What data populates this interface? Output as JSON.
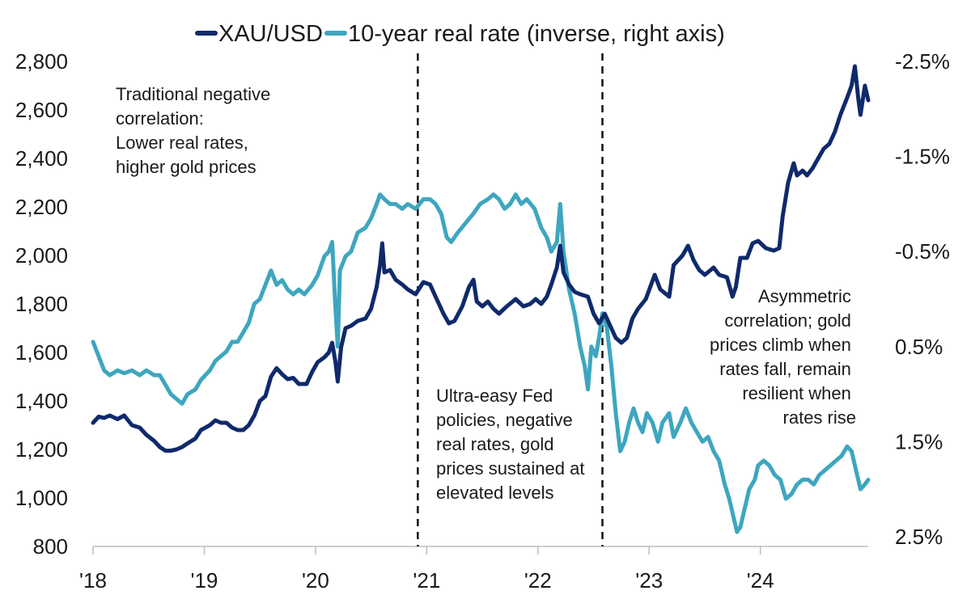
{
  "chart_data": {
    "type": "line",
    "title": "",
    "legend": [
      {
        "name": "XAU/USD",
        "color": "#0f2a6b"
      },
      {
        "name": "10-year real rate (inverse, right axis)",
        "color": "#3ea6bf"
      }
    ],
    "x_ticks": [
      "'18",
      "'19",
      "'20",
      "'21",
      "'22",
      "'23",
      "'24"
    ],
    "x_range": [
      2018.0,
      2024.97
    ],
    "y_left": {
      "ticks": [
        "2,800",
        "2,600",
        "2,400",
        "2,200",
        "2,000",
        "1,800",
        "1,600",
        "1,400",
        "1,200",
        "1,000",
        "800"
      ],
      "range": [
        800,
        2800
      ]
    },
    "y_right": {
      "ticks": [
        "-2.5%",
        "-1.5%",
        "-0.5%",
        "0.5%",
        "1.5%",
        "2.5%"
      ],
      "range": [
        -2.5,
        2.5
      ],
      "inverted": true
    },
    "vertical_lines_x": [
      2020.92,
      2022.58
    ],
    "series": [
      {
        "name": "XAU/USD",
        "axis": "left",
        "color": "#0f2a6b",
        "points": [
          [
            2018.0,
            1310
          ],
          [
            2018.05,
            1335
          ],
          [
            2018.1,
            1330
          ],
          [
            2018.15,
            1340
          ],
          [
            2018.22,
            1325
          ],
          [
            2018.28,
            1340
          ],
          [
            2018.35,
            1300
          ],
          [
            2018.42,
            1290
          ],
          [
            2018.48,
            1260
          ],
          [
            2018.55,
            1235
          ],
          [
            2018.6,
            1210
          ],
          [
            2018.65,
            1195
          ],
          [
            2018.7,
            1195
          ],
          [
            2018.75,
            1200
          ],
          [
            2018.8,
            1210
          ],
          [
            2018.85,
            1225
          ],
          [
            2018.92,
            1245
          ],
          [
            2018.97,
            1280
          ],
          [
            2019.05,
            1300
          ],
          [
            2019.1,
            1320
          ],
          [
            2019.15,
            1310
          ],
          [
            2019.2,
            1310
          ],
          [
            2019.25,
            1290
          ],
          [
            2019.3,
            1280
          ],
          [
            2019.35,
            1280
          ],
          [
            2019.4,
            1300
          ],
          [
            2019.45,
            1340
          ],
          [
            2019.5,
            1400
          ],
          [
            2019.55,
            1420
          ],
          [
            2019.6,
            1500
          ],
          [
            2019.65,
            1535
          ],
          [
            2019.7,
            1510
          ],
          [
            2019.75,
            1490
          ],
          [
            2019.8,
            1495
          ],
          [
            2019.85,
            1470
          ],
          [
            2019.92,
            1470
          ],
          [
            2019.97,
            1520
          ],
          [
            2020.02,
            1560
          ],
          [
            2020.08,
            1580
          ],
          [
            2020.12,
            1600
          ],
          [
            2020.15,
            1640
          ],
          [
            2020.18,
            1560
          ],
          [
            2020.2,
            1480
          ],
          [
            2020.23,
            1620
          ],
          [
            2020.27,
            1700
          ],
          [
            2020.32,
            1710
          ],
          [
            2020.38,
            1730
          ],
          [
            2020.45,
            1740
          ],
          [
            2020.5,
            1780
          ],
          [
            2020.55,
            1870
          ],
          [
            2020.58,
            1960
          ],
          [
            2020.6,
            2050
          ],
          [
            2020.62,
            1930
          ],
          [
            2020.67,
            1940
          ],
          [
            2020.72,
            1900
          ],
          [
            2020.78,
            1880
          ],
          [
            2020.83,
            1860
          ],
          [
            2020.9,
            1840
          ],
          [
            2020.97,
            1890
          ],
          [
            2021.03,
            1880
          ],
          [
            2021.08,
            1830
          ],
          [
            2021.15,
            1760
          ],
          [
            2021.2,
            1720
          ],
          [
            2021.25,
            1730
          ],
          [
            2021.32,
            1790
          ],
          [
            2021.38,
            1870
          ],
          [
            2021.42,
            1900
          ],
          [
            2021.45,
            1810
          ],
          [
            2021.5,
            1790
          ],
          [
            2021.55,
            1810
          ],
          [
            2021.6,
            1780
          ],
          [
            2021.65,
            1760
          ],
          [
            2021.72,
            1790
          ],
          [
            2021.8,
            1820
          ],
          [
            2021.87,
            1790
          ],
          [
            2021.93,
            1800
          ],
          [
            2021.98,
            1820
          ],
          [
            2022.03,
            1800
          ],
          [
            2022.08,
            1830
          ],
          [
            2022.12,
            1880
          ],
          [
            2022.17,
            1950
          ],
          [
            2022.2,
            2040
          ],
          [
            2022.23,
            1930
          ],
          [
            2022.28,
            1880
          ],
          [
            2022.33,
            1850
          ],
          [
            2022.38,
            1840
          ],
          [
            2022.45,
            1830
          ],
          [
            2022.5,
            1760
          ],
          [
            2022.55,
            1720
          ],
          [
            2022.6,
            1760
          ],
          [
            2022.65,
            1710
          ],
          [
            2022.7,
            1660
          ],
          [
            2022.75,
            1640
          ],
          [
            2022.8,
            1660
          ],
          [
            2022.85,
            1740
          ],
          [
            2022.9,
            1780
          ],
          [
            2022.97,
            1820
          ],
          [
            2023.05,
            1920
          ],
          [
            2023.1,
            1860
          ],
          [
            2023.18,
            1830
          ],
          [
            2023.22,
            1960
          ],
          [
            2023.3,
            2000
          ],
          [
            2023.35,
            2040
          ],
          [
            2023.4,
            1980
          ],
          [
            2023.45,
            1940
          ],
          [
            2023.5,
            1920
          ],
          [
            2023.58,
            1950
          ],
          [
            2023.63,
            1920
          ],
          [
            2023.7,
            1910
          ],
          [
            2023.75,
            1830
          ],
          [
            2023.78,
            1870
          ],
          [
            2023.82,
            1990
          ],
          [
            2023.88,
            1990
          ],
          [
            2023.93,
            2050
          ],
          [
            2023.98,
            2060
          ],
          [
            2024.05,
            2030
          ],
          [
            2024.12,
            2020
          ],
          [
            2024.17,
            2030
          ],
          [
            2024.2,
            2160
          ],
          [
            2024.25,
            2300
          ],
          [
            2024.3,
            2380
          ],
          [
            2024.33,
            2330
          ],
          [
            2024.38,
            2350
          ],
          [
            2024.42,
            2330
          ],
          [
            2024.47,
            2360
          ],
          [
            2024.52,
            2400
          ],
          [
            2024.57,
            2440
          ],
          [
            2024.62,
            2460
          ],
          [
            2024.67,
            2510
          ],
          [
            2024.72,
            2580
          ],
          [
            2024.78,
            2650
          ],
          [
            2024.82,
            2700
          ],
          [
            2024.85,
            2780
          ],
          [
            2024.88,
            2650
          ],
          [
            2024.9,
            2580
          ],
          [
            2024.94,
            2700
          ],
          [
            2024.97,
            2640
          ]
        ]
      },
      {
        "name": "10-year real rate (inverse, right axis)",
        "axis": "right",
        "color": "#3ea6bf",
        "points": [
          [
            2018.0,
            0.45
          ],
          [
            2018.05,
            0.6
          ],
          [
            2018.1,
            0.75
          ],
          [
            2018.15,
            0.8
          ],
          [
            2018.22,
            0.75
          ],
          [
            2018.28,
            0.78
          ],
          [
            2018.35,
            0.75
          ],
          [
            2018.42,
            0.8
          ],
          [
            2018.48,
            0.75
          ],
          [
            2018.55,
            0.8
          ],
          [
            2018.6,
            0.8
          ],
          [
            2018.65,
            0.9
          ],
          [
            2018.7,
            1.0
          ],
          [
            2018.75,
            1.05
          ],
          [
            2018.8,
            1.1
          ],
          [
            2018.85,
            1.0
          ],
          [
            2018.92,
            0.95
          ],
          [
            2018.97,
            0.85
          ],
          [
            2019.05,
            0.75
          ],
          [
            2019.1,
            0.65
          ],
          [
            2019.15,
            0.6
          ],
          [
            2019.2,
            0.55
          ],
          [
            2019.25,
            0.45
          ],
          [
            2019.3,
            0.45
          ],
          [
            2019.35,
            0.35
          ],
          [
            2019.4,
            0.25
          ],
          [
            2019.45,
            0.05
          ],
          [
            2019.5,
            0.0
          ],
          [
            2019.55,
            -0.15
          ],
          [
            2019.6,
            -0.3
          ],
          [
            2019.65,
            -0.15
          ],
          [
            2019.7,
            -0.2
          ],
          [
            2019.75,
            -0.1
          ],
          [
            2019.8,
            -0.05
          ],
          [
            2019.85,
            -0.1
          ],
          [
            2019.9,
            -0.05
          ],
          [
            2019.97,
            -0.15
          ],
          [
            2020.02,
            -0.25
          ],
          [
            2020.08,
            -0.45
          ],
          [
            2020.12,
            -0.5
          ],
          [
            2020.15,
            -0.6
          ],
          [
            2020.18,
            0.1
          ],
          [
            2020.2,
            0.5
          ],
          [
            2020.22,
            -0.3
          ],
          [
            2020.27,
            -0.45
          ],
          [
            2020.32,
            -0.5
          ],
          [
            2020.38,
            -0.7
          ],
          [
            2020.45,
            -0.75
          ],
          [
            2020.5,
            -0.85
          ],
          [
            2020.55,
            -1.0
          ],
          [
            2020.58,
            -1.1
          ],
          [
            2020.62,
            -1.05
          ],
          [
            2020.67,
            -1.0
          ],
          [
            2020.72,
            -1.0
          ],
          [
            2020.78,
            -0.95
          ],
          [
            2020.83,
            -1.0
          ],
          [
            2020.9,
            -0.95
          ],
          [
            2020.97,
            -1.05
          ],
          [
            2021.03,
            -1.05
          ],
          [
            2021.08,
            -1.0
          ],
          [
            2021.13,
            -0.9
          ],
          [
            2021.18,
            -0.65
          ],
          [
            2021.22,
            -0.6
          ],
          [
            2021.28,
            -0.7
          ],
          [
            2021.35,
            -0.8
          ],
          [
            2021.42,
            -0.9
          ],
          [
            2021.48,
            -1.0
          ],
          [
            2021.55,
            -1.05
          ],
          [
            2021.6,
            -1.1
          ],
          [
            2021.65,
            -1.05
          ],
          [
            2021.7,
            -0.95
          ],
          [
            2021.75,
            -1.0
          ],
          [
            2021.8,
            -1.1
          ],
          [
            2021.85,
            -1.0
          ],
          [
            2021.9,
            -1.05
          ],
          [
            2021.97,
            -0.95
          ],
          [
            2022.03,
            -0.75
          ],
          [
            2022.08,
            -0.65
          ],
          [
            2022.12,
            -0.5
          ],
          [
            2022.17,
            -0.6
          ],
          [
            2022.2,
            -1.0
          ],
          [
            2022.23,
            -0.5
          ],
          [
            2022.28,
            -0.1
          ],
          [
            2022.33,
            0.15
          ],
          [
            2022.38,
            0.5
          ],
          [
            2022.42,
            0.7
          ],
          [
            2022.45,
            0.95
          ],
          [
            2022.48,
            0.5
          ],
          [
            2022.52,
            0.6
          ],
          [
            2022.55,
            0.4
          ],
          [
            2022.58,
            0.15
          ],
          [
            2022.62,
            0.3
          ],
          [
            2022.66,
            0.7
          ],
          [
            2022.7,
            1.2
          ],
          [
            2022.74,
            1.6
          ],
          [
            2022.78,
            1.5
          ],
          [
            2022.82,
            1.3
          ],
          [
            2022.86,
            1.15
          ],
          [
            2022.9,
            1.3
          ],
          [
            2022.94,
            1.4
          ],
          [
            2022.98,
            1.2
          ],
          [
            2023.03,
            1.3
          ],
          [
            2023.08,
            1.5
          ],
          [
            2023.12,
            1.3
          ],
          [
            2023.18,
            1.2
          ],
          [
            2023.22,
            1.45
          ],
          [
            2023.28,
            1.3
          ],
          [
            2023.33,
            1.15
          ],
          [
            2023.38,
            1.3
          ],
          [
            2023.43,
            1.4
          ],
          [
            2023.48,
            1.5
          ],
          [
            2023.53,
            1.45
          ],
          [
            2023.58,
            1.6
          ],
          [
            2023.63,
            1.7
          ],
          [
            2023.68,
            1.95
          ],
          [
            2023.72,
            2.1
          ],
          [
            2023.76,
            2.3
          ],
          [
            2023.79,
            2.45
          ],
          [
            2023.82,
            2.4
          ],
          [
            2023.86,
            2.2
          ],
          [
            2023.9,
            2.0
          ],
          [
            2023.95,
            1.9
          ],
          [
            2023.98,
            1.75
          ],
          [
            2024.03,
            1.7
          ],
          [
            2024.08,
            1.75
          ],
          [
            2024.13,
            1.85
          ],
          [
            2024.18,
            1.9
          ],
          [
            2024.23,
            2.1
          ],
          [
            2024.28,
            2.05
          ],
          [
            2024.33,
            1.95
          ],
          [
            2024.38,
            1.9
          ],
          [
            2024.43,
            1.9
          ],
          [
            2024.48,
            1.95
          ],
          [
            2024.53,
            1.85
          ],
          [
            2024.58,
            1.8
          ],
          [
            2024.63,
            1.75
          ],
          [
            2024.68,
            1.7
          ],
          [
            2024.73,
            1.65
          ],
          [
            2024.78,
            1.55
          ],
          [
            2024.82,
            1.6
          ],
          [
            2024.86,
            1.8
          ],
          [
            2024.9,
            2.0
          ],
          [
            2024.94,
            1.95
          ],
          [
            2024.97,
            1.9
          ]
        ]
      }
    ],
    "annotations": [
      {
        "lines": [
          "Traditional negative",
          "correlation:",
          "Lower real rates,",
          "higher gold prices"
        ],
        "align": "left"
      },
      {
        "lines": [
          "Ultra-easy Fed",
          "policies, negative",
          "real rates, gold",
          "prices sustained at",
          "elevated levels"
        ],
        "align": "left"
      },
      {
        "lines": [
          "Asymmetric",
          "correlation; gold",
          "prices climb when",
          "rates fall, remain",
          "resilient when",
          "rates rise"
        ],
        "align": "right"
      }
    ]
  }
}
